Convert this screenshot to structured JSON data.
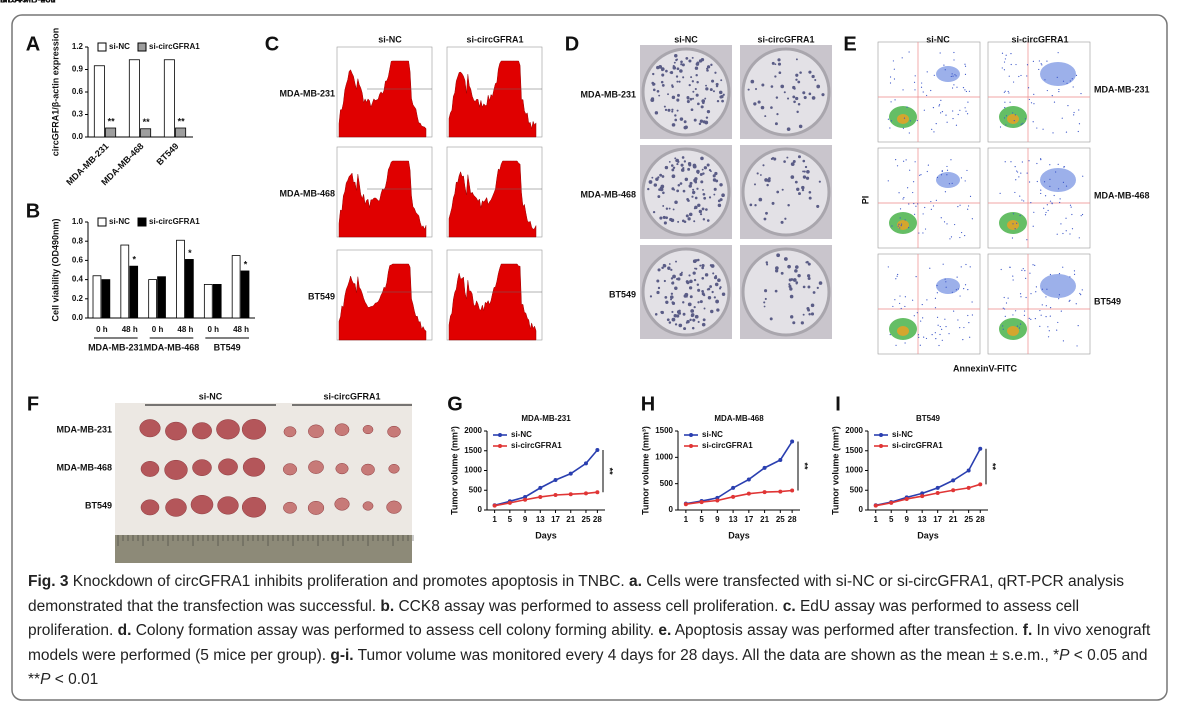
{
  "panel_letters": [
    "A",
    "B",
    "C",
    "D",
    "E",
    "F",
    "G",
    "H",
    "I"
  ],
  "chart_data": [
    {
      "type": "bar",
      "y_label": "circGFRA1/β-actin expression",
      "categories": [
        "MDA-MB-231",
        "MDA-MB-468",
        "BT549"
      ],
      "series": [
        {
          "name": "si-NC",
          "color": "#ffffff",
          "values": [
            0.95,
            1.03,
            1.03
          ]
        },
        {
          "name": "si-circGFRA1",
          "color": "#9e9e9e",
          "values": [
            0.12,
            0.11,
            0.12
          ],
          "annotations": [
            "**",
            "**",
            "**"
          ]
        }
      ],
      "ylim": [
        0,
        1.2
      ],
      "yticks": [
        {
          "value": 0,
          "label": "0.0"
        },
        0.3,
        0.6,
        0.9,
        1.2
      ],
      "rotate_labels": true
    },
    {
      "type": "bar",
      "y_label": "Cell viability (OD490nm)",
      "categories": [
        "0 h",
        "48 h",
        "0 h",
        "48 h",
        "0 h",
        "48 h"
      ],
      "groups": [
        "MDA-MB-231",
        "MDA-MB-468",
        "BT549"
      ],
      "series": [
        {
          "name": "si-NC",
          "color": "#ffffff",
          "values": [
            0.44,
            0.76,
            0.4,
            0.81,
            0.35,
            0.65
          ]
        },
        {
          "name": "si-circGFRA1",
          "color": "#000000",
          "values": [
            0.4,
            0.54,
            0.43,
            0.61,
            0.35,
            0.49
          ],
          "annotations": [
            null,
            "*",
            null,
            "*",
            null,
            "*"
          ]
        }
      ],
      "ylim": [
        0,
        1.0
      ],
      "yticks": [
        {
          "value": 0,
          "label": "0.0"
        },
        0.2,
        0.4,
        0.6,
        0.8,
        {
          "value": 1,
          "label": "1.0"
        }
      ],
      "rotate_labels": false
    },
    {
      "type": "line",
      "title": "MDA-MB-231",
      "x_label": "Days",
      "y_label": "Tumor volume (mm³)",
      "x": [
        1,
        5,
        9,
        13,
        17,
        21,
        25,
        28
      ],
      "series": [
        {
          "name": "si-NC",
          "color": "#2a3fb0",
          "values": [
            120,
            220,
            330,
            560,
            760,
            920,
            1180,
            1520
          ]
        },
        {
          "name": "si-circGFRA1",
          "color": "#e03535",
          "values": [
            110,
            180,
            260,
            330,
            380,
            400,
            420,
            450
          ]
        }
      ],
      "xlim": [
        -1,
        30
      ],
      "xticks": [
        1,
        5,
        9,
        13,
        17,
        21,
        25,
        28
      ],
      "ylim": [
        0,
        2000
      ],
      "yticks": [
        0,
        500,
        1000,
        1500,
        2000
      ],
      "annotation": "**"
    },
    {
      "type": "line",
      "title": "MDA-MB-468",
      "x_label": "Days",
      "y_label": "Tumor volume (mm³)",
      "x": [
        1,
        5,
        9,
        13,
        17,
        21,
        25,
        28
      ],
      "series": [
        {
          "name": "si-NC",
          "color": "#2a3fb0",
          "values": [
            120,
            170,
            230,
            420,
            580,
            800,
            950,
            1300
          ]
        },
        {
          "name": "si-circGFRA1",
          "color": "#e03535",
          "values": [
            110,
            150,
            180,
            250,
            310,
            340,
            350,
            370
          ]
        }
      ],
      "xlim": [
        -1,
        30
      ],
      "xticks": [
        1,
        5,
        9,
        13,
        17,
        21,
        25,
        28
      ],
      "ylim": [
        0,
        1500
      ],
      "yticks": [
        0,
        500,
        1000,
        1500
      ],
      "annotation": "**"
    },
    {
      "type": "line",
      "title": "BT549",
      "x_label": "Days",
      "y_label": "Tumor volume (mm³)",
      "x": [
        1,
        5,
        9,
        13,
        17,
        21,
        25,
        28
      ],
      "series": [
        {
          "name": "si-NC",
          "color": "#2a3fb0",
          "values": [
            120,
            200,
            320,
            420,
            560,
            750,
            1000,
            1550
          ]
        },
        {
          "name": "si-circGFRA1",
          "color": "#e03535",
          "values": [
            110,
            180,
            280,
            350,
            430,
            500,
            560,
            650
          ]
        }
      ],
      "xlim": [
        -1,
        30
      ],
      "xticks": [
        1,
        5,
        9,
        13,
        17,
        21,
        25,
        28
      ],
      "ylim": [
        0,
        2000
      ],
      "yticks": [
        0,
        500,
        1000,
        1500,
        2000
      ],
      "annotation": "**"
    }
  ],
  "flow_histograms": {
    "columns": [
      "si-NC",
      "si-circGFRA1"
    ],
    "rows": [
      "MDA-MB-231",
      "MDA-MB-468",
      "BT549"
    ]
  },
  "colony": {
    "columns": [
      "si-NC",
      "si-circGFRA1"
    ],
    "rows": [
      "MDA-MB-231",
      "MDA-MB-468",
      "BT549"
    ]
  },
  "apoptosis": {
    "columns": [
      "si-NC",
      "si-circGFRA1"
    ],
    "rows": [
      "MDA-MB-231",
      "MDA-MB-468",
      "BT549"
    ],
    "y_label": "PI",
    "x_label": "AnnexinV-FITC"
  },
  "xenograft": {
    "groups": [
      "si-NC",
      "si-circGFRA1"
    ],
    "rows": [
      "MDA-MB-231",
      "MDA-MB-468",
      "BT549"
    ]
  },
  "caption": [
    {
      "text": "Fig. 3",
      "style": "bold"
    },
    {
      "text": " Knockdown of circGFRA1 inhibits proliferation and promotes apoptosis in TNBC. "
    },
    {
      "text": "a.",
      "style": "bold"
    },
    {
      "text": " Cells were transfected with si-NC or si-circGFRA1, qRT-PCR analysis demonstrated that the transfection was successful. "
    },
    {
      "text": "b.",
      "style": "bold"
    },
    {
      "text": " CCK8 assay was performed to assess cell proliferation. "
    },
    {
      "text": "c.",
      "style": "bold"
    },
    {
      "text": " EdU assay was performed to assess cell proliferation. "
    },
    {
      "text": "d.",
      "style": "bold"
    },
    {
      "text": " Colony formation assay was performed to assess cell colony forming ability. "
    },
    {
      "text": "e.",
      "style": "bold"
    },
    {
      "text": " Apoptosis assay was performed after transfection. "
    },
    {
      "text": "f.",
      "style": "bold"
    },
    {
      "text": " In vivo xenograft models were performed (5 mice per group). "
    },
    {
      "text": "g-i.",
      "style": "bold"
    },
    {
      "text": " Tumor volume was monitored every 4 days for 28 days. All the data are shown as the mean ± s.e.m., *"
    },
    {
      "text": "P",
      "style": "italic"
    },
    {
      "text": " < 0.05 and **"
    },
    {
      "text": "P",
      "style": "italic"
    },
    {
      "text": " < 0.01"
    }
  ]
}
